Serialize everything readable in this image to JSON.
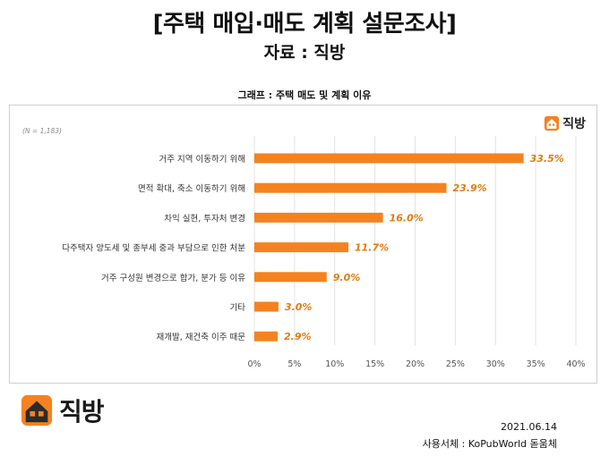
{
  "header": {
    "title": "[주택 매입·매도 계획 설문조사]",
    "source": "자료 : 직방"
  },
  "brand": {
    "name": "직방",
    "accent": "#f5821f",
    "dark": "#2b2b2b"
  },
  "chart_data": {
    "type": "bar",
    "orientation": "horizontal",
    "title": "그래프 : 주택 매도 및 계획 이유",
    "note": "(N = 1,183)",
    "categories": [
      "거주 지역 이동하기 위해",
      "면적 확대, 축소 이동하기 위해",
      "차익 실현, 투자처 변경",
      "다주택자 양도세 및 종부세 중과 부담으로 인한 처분",
      "거주 구성원 변경으로 합가, 분가 등 이유",
      "기타",
      "재개발, 재건축 이주 때문"
    ],
    "values": [
      33.5,
      23.9,
      16.0,
      11.7,
      9.0,
      3.0,
      2.9
    ],
    "data_labels": [
      "33.5%",
      "23.9%",
      "16.0%",
      "11.7%",
      "9.0%",
      "3.0%",
      "2.9%"
    ],
    "xlim": [
      0,
      40
    ],
    "xticks": [
      "0%",
      "5%",
      "10%",
      "15%",
      "20%",
      "25%",
      "30%",
      "35%",
      "40%"
    ],
    "bar_color": "#f5821f",
    "label_color": "#e07b12",
    "grid": true
  },
  "footer": {
    "date": "2021.06.14",
    "font_note": "사용서체 : KoPubWorld 돋움체"
  }
}
